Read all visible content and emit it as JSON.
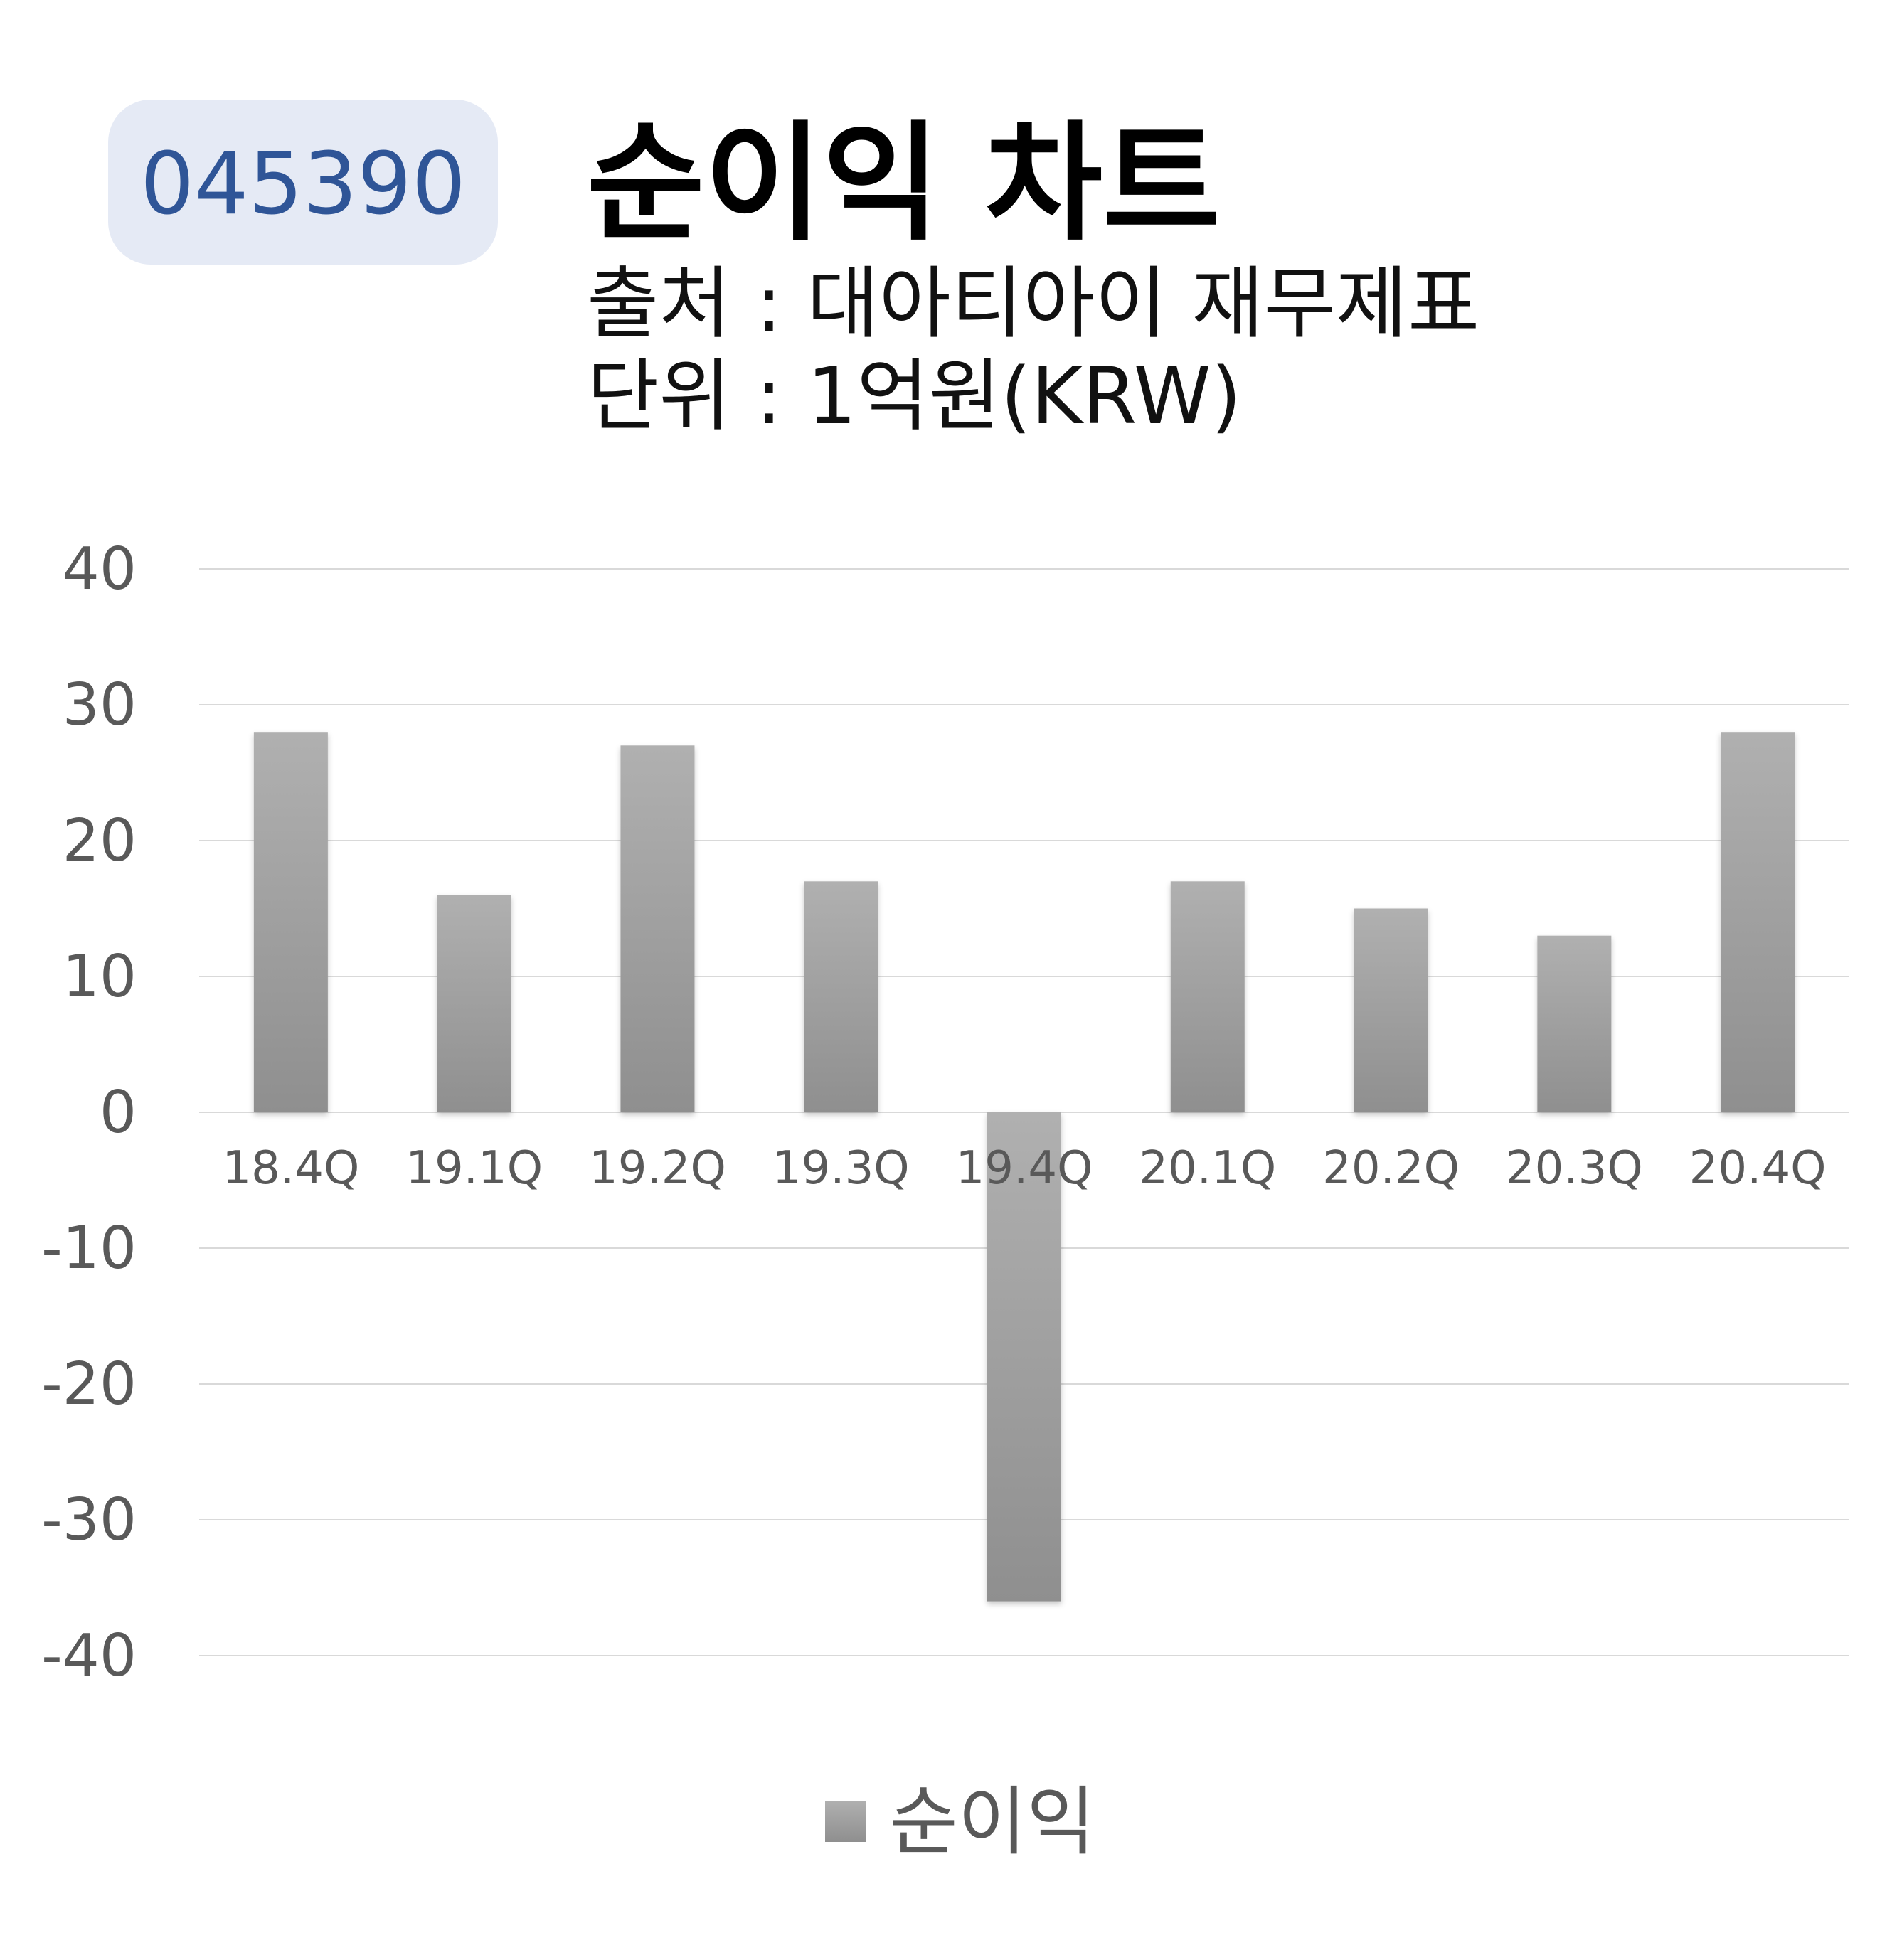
{
  "badge": {
    "ticker": "045390"
  },
  "colors": {
    "badge_bg": "#e5eaf5",
    "badge_text": "#2f5597",
    "title": "#000000",
    "subtitle": "#111111",
    "tick": "#595959",
    "grid": "#d9d9d9",
    "bar_top": "#b0b0b0",
    "bar_bottom": "#8f8f8f"
  },
  "chart_data": {
    "type": "bar",
    "title": "순이익 차트",
    "subtitle_lines": [
      "출처 : 대아티아이 재무제표",
      "단위 : 1억원(KRW)"
    ],
    "categories": [
      "18.4Q",
      "19.1Q",
      "19.2Q",
      "19.3Q",
      "19.4Q",
      "20.1Q",
      "20.2Q",
      "20.3Q",
      "20.4Q"
    ],
    "series": [
      {
        "name": "순이익",
        "values": [
          28,
          16,
          27,
          17,
          -36,
          17,
          15,
          13,
          28
        ]
      }
    ],
    "ylim": [
      -40,
      40
    ],
    "yticks": [
      40,
      30,
      20,
      10,
      0,
      -10,
      -20,
      -30,
      -40
    ],
    "grid": true,
    "legend": "bottom-center",
    "xlabel": "",
    "ylabel": ""
  }
}
